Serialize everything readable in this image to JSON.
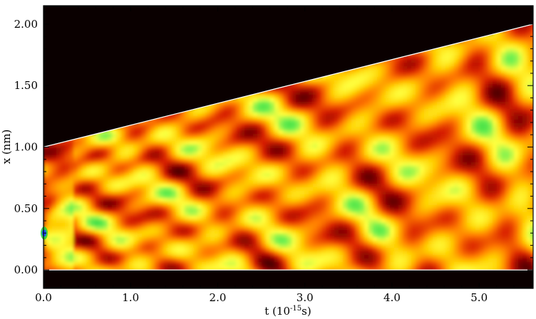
{
  "chart_data": {
    "type": "heatmap",
    "title": "",
    "xlabel": "t (10",
    "xlabel_exp": "-15",
    "xlabel_unit": "s)",
    "ylabel": "x (nm)",
    "xlim": [
      0.0,
      5.62
    ],
    "ylim": [
      -0.15,
      2.15
    ],
    "x_ticks": [
      0.0,
      1.0,
      2.0,
      3.0,
      4.0,
      5.0
    ],
    "x_tick_labels": [
      "0.0",
      "1.0",
      "2.0",
      "3.0",
      "4.0",
      "5.0"
    ],
    "y_ticks": [
      0.0,
      0.5,
      1.0,
      1.5,
      2.0
    ],
    "y_tick_labels": [
      "0.00",
      "0.50",
      "1.00",
      "1.50",
      "2.00"
    ],
    "boundaries": [
      {
        "name": "lower-wall",
        "points": [
          [
            0.0,
            0.0
          ],
          [
            5.62,
            0.0
          ]
        ]
      },
      {
        "name": "upper-wall",
        "points": [
          [
            0.0,
            1.0
          ],
          [
            5.62,
            2.0
          ]
        ]
      }
    ],
    "colormap": [
      "#080000",
      "#3a0000",
      "#8a0500",
      "#d82000",
      "#ff7a00",
      "#ffd000",
      "#ffff40",
      "#70f050",
      "#20d040",
      "#2050ff"
    ],
    "background_color": "#0a0000",
    "initial_packet": {
      "t": 0.0,
      "x": 0.3
    },
    "grid": false
  }
}
